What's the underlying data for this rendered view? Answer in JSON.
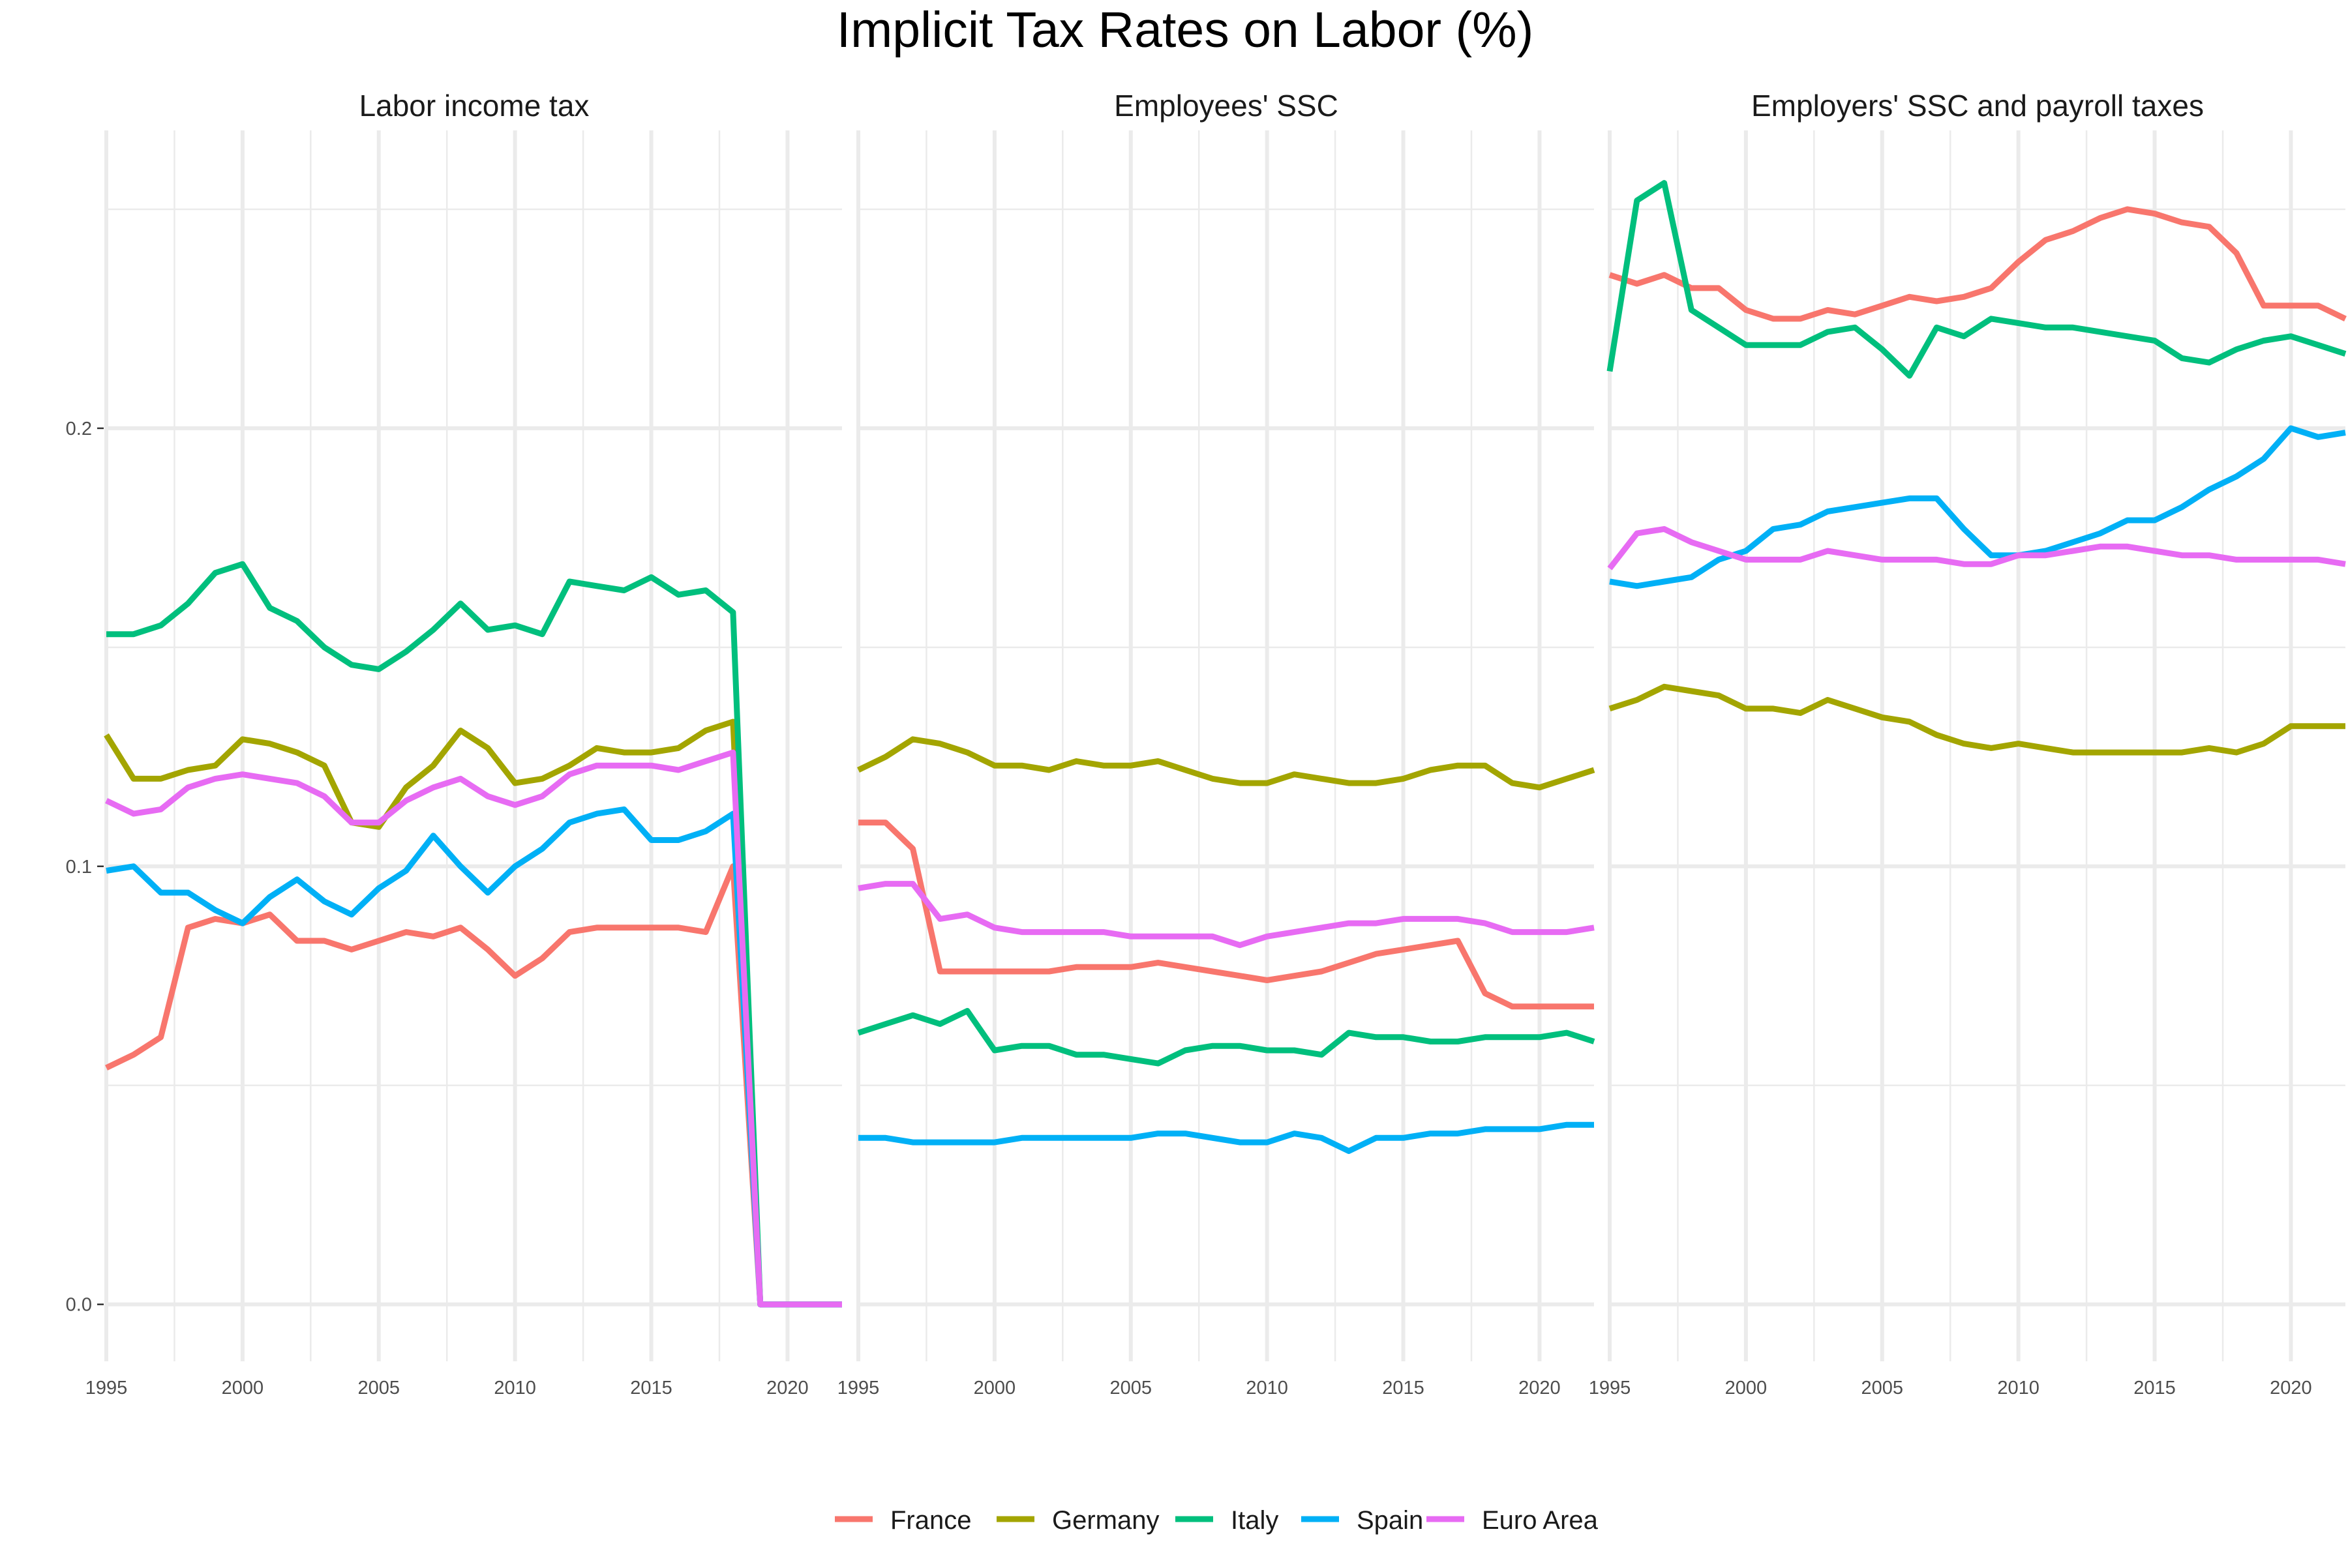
{
  "chart_data": {
    "type": "line",
    "title": "Implicit Tax Rates on Labor (%)",
    "xlabel": "",
    "ylabel": "",
    "ylim": [
      -0.013,
      0.268
    ],
    "xlim": [
      1995,
      2022
    ],
    "x_ticks": [
      1995,
      2000,
      2005,
      2010,
      2015,
      2020
    ],
    "y_ticks": [
      0.0,
      0.1,
      0.2
    ],
    "y_tick_labels": [
      "0.0",
      "0.1",
      "0.2"
    ],
    "grid": true,
    "legend_position": "bottom",
    "colors": {
      "France": "#F8766D",
      "Germany": "#A3A500",
      "Italy": "#00BF7D",
      "Spain": "#00B0F6",
      "Euro Area": "#E76BF3"
    },
    "legend": [
      "France",
      "Germany",
      "Italy",
      "Spain",
      "Euro Area"
    ],
    "x": [
      1995,
      1996,
      1997,
      1998,
      1999,
      2000,
      2001,
      2002,
      2003,
      2004,
      2005,
      2006,
      2007,
      2008,
      2009,
      2010,
      2011,
      2012,
      2013,
      2014,
      2015,
      2016,
      2017,
      2018,
      2019,
      2020,
      2021,
      2022
    ],
    "panels": [
      {
        "title": "Labor income tax",
        "series": [
          {
            "name": "France",
            "values": [
              0.054,
              0.057,
              0.061,
              0.086,
              0.088,
              0.087,
              0.089,
              0.083,
              0.083,
              0.081,
              0.083,
              0.085,
              0.084,
              0.086,
              0.081,
              0.075,
              0.079,
              0.085,
              0.086,
              0.086,
              0.086,
              0.086,
              0.085,
              0.1,
              0.0,
              0.0,
              0.0,
              0.0
            ]
          },
          {
            "name": "Germany",
            "values": [
              0.13,
              0.12,
              0.12,
              0.122,
              0.123,
              0.129,
              0.128,
              0.126,
              0.123,
              0.11,
              0.109,
              0.118,
              0.123,
              0.131,
              0.127,
              0.119,
              0.12,
              0.123,
              0.127,
              0.126,
              0.126,
              0.127,
              0.131,
              0.133,
              0.0,
              0.0,
              0.0,
              0.0
            ]
          },
          {
            "name": "Italy",
            "values": [
              0.153,
              0.153,
              0.155,
              0.16,
              0.167,
              0.169,
              0.159,
              0.156,
              0.15,
              0.146,
              0.145,
              0.149,
              0.154,
              0.16,
              0.154,
              0.155,
              0.153,
              0.165,
              0.164,
              0.163,
              0.166,
              0.162,
              0.163,
              0.158,
              0.0,
              0.0,
              0.0,
              0.0
            ]
          },
          {
            "name": "Spain",
            "values": [
              0.099,
              0.1,
              0.094,
              0.094,
              0.09,
              0.087,
              0.093,
              0.097,
              0.092,
              0.089,
              0.095,
              0.099,
              0.107,
              0.1,
              0.094,
              0.1,
              0.104,
              0.11,
              0.112,
              0.113,
              0.106,
              0.106,
              0.108,
              0.112,
              0.0,
              0.0,
              0.0,
              0.0
            ]
          },
          {
            "name": "Euro Area",
            "values": [
              0.115,
              0.112,
              0.113,
              0.118,
              0.12,
              0.121,
              0.12,
              0.119,
              0.116,
              0.11,
              0.11,
              0.115,
              0.118,
              0.12,
              0.116,
              0.114,
              0.116,
              0.121,
              0.123,
              0.123,
              0.123,
              0.122,
              0.124,
              0.126,
              0.0,
              0.0,
              0.0,
              0.0
            ]
          }
        ]
      },
      {
        "title": "Employees' SSC",
        "series": [
          {
            "name": "France",
            "values": [
              0.11,
              0.11,
              0.104,
              0.076,
              0.076,
              0.076,
              0.076,
              0.076,
              0.077,
              0.077,
              0.077,
              0.078,
              0.077,
              0.076,
              0.075,
              0.074,
              0.075,
              0.076,
              0.078,
              0.08,
              0.081,
              0.082,
              0.083,
              0.071,
              0.068,
              0.068,
              0.068,
              0.068
            ]
          },
          {
            "name": "Germany",
            "values": [
              0.122,
              0.125,
              0.129,
              0.128,
              0.126,
              0.123,
              0.123,
              0.122,
              0.124,
              0.123,
              0.123,
              0.124,
              0.122,
              0.12,
              0.119,
              0.119,
              0.121,
              0.12,
              0.119,
              0.119,
              0.12,
              0.122,
              0.123,
              0.123,
              0.119,
              0.118,
              0.12,
              0.122
            ]
          },
          {
            "name": "Italy",
            "values": [
              0.062,
              0.064,
              0.066,
              0.064,
              0.067,
              0.058,
              0.059,
              0.059,
              0.057,
              0.057,
              0.056,
              0.055,
              0.058,
              0.059,
              0.059,
              0.058,
              0.058,
              0.057,
              0.062,
              0.061,
              0.061,
              0.06,
              0.06,
              0.061,
              0.061,
              0.061,
              0.062,
              0.06
            ]
          },
          {
            "name": "Spain",
            "values": [
              0.038,
              0.038,
              0.037,
              0.037,
              0.037,
              0.037,
              0.038,
              0.038,
              0.038,
              0.038,
              0.038,
              0.039,
              0.039,
              0.038,
              0.037,
              0.037,
              0.039,
              0.038,
              0.035,
              0.038,
              0.038,
              0.039,
              0.039,
              0.04,
              0.04,
              0.04,
              0.041,
              0.041
            ]
          },
          {
            "name": "Euro Area",
            "values": [
              0.095,
              0.096,
              0.096,
              0.088,
              0.089,
              0.086,
              0.085,
              0.085,
              0.085,
              0.085,
              0.084,
              0.084,
              0.084,
              0.084,
              0.082,
              0.084,
              0.085,
              0.086,
              0.087,
              0.087,
              0.088,
              0.088,
              0.088,
              0.087,
              0.085,
              0.085,
              0.085,
              0.086
            ]
          }
        ]
      },
      {
        "title": "Employers' SSC and payroll taxes",
        "series": [
          {
            "name": "France",
            "values": [
              0.235,
              0.233,
              0.235,
              0.232,
              0.232,
              0.227,
              0.225,
              0.225,
              0.227,
              0.226,
              0.228,
              0.23,
              0.229,
              0.23,
              0.232,
              0.238,
              0.243,
              0.245,
              0.248,
              0.25,
              0.249,
              0.247,
              0.246,
              0.24,
              0.228,
              0.228,
              0.228,
              0.225
            ]
          },
          {
            "name": "Germany",
            "values": [
              0.136,
              0.138,
              0.141,
              0.14,
              0.139,
              0.136,
              0.136,
              0.135,
              0.138,
              0.136,
              0.134,
              0.133,
              0.13,
              0.128,
              0.127,
              0.128,
              0.127,
              0.126,
              0.126,
              0.126,
              0.126,
              0.126,
              0.127,
              0.126,
              0.128,
              0.132,
              0.132,
              0.132
            ]
          },
          {
            "name": "Italy",
            "values": [
              0.213,
              0.252,
              0.256,
              0.227,
              0.223,
              0.219,
              0.219,
              0.219,
              0.222,
              0.223,
              0.218,
              0.212,
              0.223,
              0.221,
              0.225,
              0.224,
              0.223,
              0.223,
              0.222,
              0.221,
              0.22,
              0.216,
              0.215,
              0.218,
              0.22,
              0.221,
              0.219,
              0.217
            ]
          },
          {
            "name": "Spain",
            "values": [
              0.165,
              0.164,
              0.165,
              0.166,
              0.17,
              0.172,
              0.177,
              0.178,
              0.181,
              0.182,
              0.183,
              0.184,
              0.184,
              0.177,
              0.171,
              0.171,
              0.172,
              0.174,
              0.176,
              0.179,
              0.179,
              0.182,
              0.186,
              0.189,
              0.193,
              0.2,
              0.198,
              0.199
            ]
          },
          {
            "name": "Euro Area",
            "values": [
              0.168,
              0.176,
              0.177,
              0.174,
              0.172,
              0.17,
              0.17,
              0.17,
              0.172,
              0.171,
              0.17,
              0.17,
              0.17,
              0.169,
              0.169,
              0.171,
              0.171,
              0.172,
              0.173,
              0.173,
              0.172,
              0.171,
              0.171,
              0.17,
              0.17,
              0.17,
              0.17,
              0.169
            ]
          }
        ]
      }
    ]
  }
}
